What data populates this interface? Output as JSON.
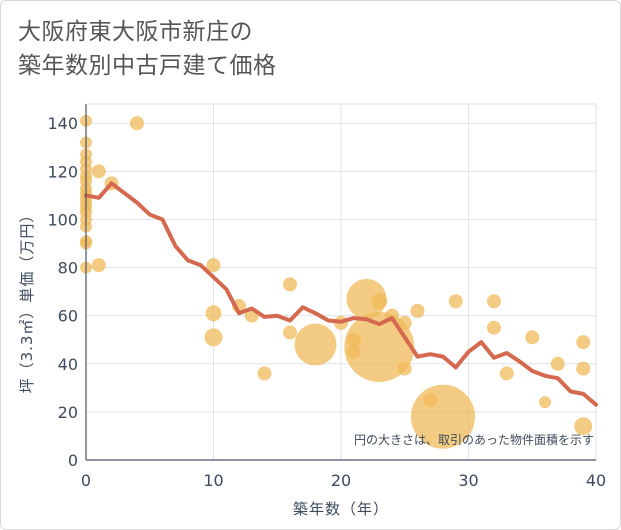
{
  "title": {
    "line1": "大阪府東大阪市新庄の",
    "line2": "築年数別中古戸建て価格"
  },
  "colors": {
    "bubble": "#f0b95a",
    "line": "#d4694f",
    "grid": "#dfe3ea",
    "axis_text": "#3d4b5c"
  },
  "chart_data": {
    "type": "scatter",
    "xlabel": "築年数（年）",
    "ylabel": "坪（3.3㎡）単価（万円）",
    "xlim": [
      0,
      40
    ],
    "ylim": [
      0,
      148
    ],
    "xticks": [
      "0",
      "10",
      "20",
      "30",
      "40"
    ],
    "yticks": [
      "0",
      "20",
      "40",
      "60",
      "80",
      "100",
      "120",
      "140"
    ],
    "annotation": "円の大きさは、取引のあった物件面積を示す",
    "bubbles": [
      {
        "x": 0,
        "y": 141,
        "s": 6
      },
      {
        "x": 0,
        "y": 132,
        "s": 6
      },
      {
        "x": 0,
        "y": 127,
        "s": 6
      },
      {
        "x": 0,
        "y": 124,
        "s": 6
      },
      {
        "x": 0,
        "y": 121,
        "s": 6
      },
      {
        "x": 0,
        "y": 118,
        "s": 6
      },
      {
        "x": 0,
        "y": 116,
        "s": 6
      },
      {
        "x": 0,
        "y": 113,
        "s": 6
      },
      {
        "x": 0,
        "y": 111,
        "s": 6
      },
      {
        "x": 0,
        "y": 109,
        "s": 6
      },
      {
        "x": 0,
        "y": 107,
        "s": 6
      },
      {
        "x": 0,
        "y": 105,
        "s": 6
      },
      {
        "x": 0,
        "y": 103,
        "s": 6
      },
      {
        "x": 0,
        "y": 100,
        "s": 6
      },
      {
        "x": 0,
        "y": 97,
        "s": 6
      },
      {
        "x": 0,
        "y": 91,
        "s": 6
      },
      {
        "x": 0,
        "y": 90,
        "s": 6
      },
      {
        "x": 0,
        "y": 80,
        "s": 6
      },
      {
        "x": 1,
        "y": 120,
        "s": 7
      },
      {
        "x": 1,
        "y": 81,
        "s": 7
      },
      {
        "x": 2,
        "y": 115,
        "s": 7
      },
      {
        "x": 4,
        "y": 140,
        "s": 7
      },
      {
        "x": 10,
        "y": 81,
        "s": 7
      },
      {
        "x": 10,
        "y": 61,
        "s": 8
      },
      {
        "x": 10,
        "y": 51,
        "s": 9
      },
      {
        "x": 12,
        "y": 64,
        "s": 7
      },
      {
        "x": 13,
        "y": 60,
        "s": 7
      },
      {
        "x": 14,
        "y": 36,
        "s": 7
      },
      {
        "x": 16,
        "y": 73,
        "s": 7
      },
      {
        "x": 16,
        "y": 53,
        "s": 7
      },
      {
        "x": 18,
        "y": 48,
        "s": 21
      },
      {
        "x": 20,
        "y": 57,
        "s": 7
      },
      {
        "x": 21,
        "y": 50,
        "s": 7
      },
      {
        "x": 21,
        "y": 45,
        "s": 7
      },
      {
        "x": 22,
        "y": 67,
        "s": 20
      },
      {
        "x": 23,
        "y": 66,
        "s": 8
      },
      {
        "x": 23,
        "y": 47,
        "s": 35
      },
      {
        "x": 24,
        "y": 60,
        "s": 7
      },
      {
        "x": 25,
        "y": 57,
        "s": 7
      },
      {
        "x": 25,
        "y": 38,
        "s": 7
      },
      {
        "x": 26,
        "y": 62,
        "s": 7
      },
      {
        "x": 27,
        "y": 25,
        "s": 7
      },
      {
        "x": 28,
        "y": 18,
        "s": 32
      },
      {
        "x": 29,
        "y": 66,
        "s": 7
      },
      {
        "x": 32,
        "y": 66,
        "s": 7
      },
      {
        "x": 32,
        "y": 55,
        "s": 7
      },
      {
        "x": 33,
        "y": 36,
        "s": 7
      },
      {
        "x": 35,
        "y": 51,
        "s": 7
      },
      {
        "x": 36,
        "y": 24,
        "s": 6
      },
      {
        "x": 37,
        "y": 40,
        "s": 7
      },
      {
        "x": 39,
        "y": 49,
        "s": 7
      },
      {
        "x": 39,
        "y": 38,
        "s": 7
      },
      {
        "x": 39,
        "y": 14,
        "s": 9
      }
    ],
    "trend": {
      "x": [
        0,
        1,
        2,
        3,
        4,
        5,
        6,
        7,
        8,
        9,
        10,
        11,
        12,
        13,
        14,
        15,
        16,
        17,
        18,
        19,
        20,
        21,
        22,
        23,
        24,
        25,
        26,
        27,
        28,
        29,
        30,
        31,
        32,
        33,
        34,
        35,
        36,
        37,
        38,
        39,
        40
      ],
      "y": [
        110,
        109,
        115,
        111,
        107,
        102,
        100,
        89,
        83,
        81,
        76,
        71,
        61,
        63,
        59.5,
        60,
        58,
        63.5,
        61,
        58,
        57.5,
        59,
        58.5,
        56.5,
        59,
        51,
        43,
        44,
        43,
        38.5,
        45,
        49,
        42.5,
        44.5,
        41,
        37,
        35,
        34,
        28.5,
        27.5,
        23
      ]
    }
  }
}
